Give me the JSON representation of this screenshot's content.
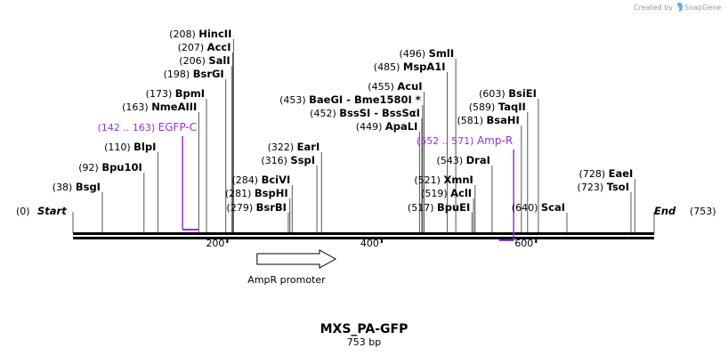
{
  "credit": "Created by",
  "credit_brand": "SnapGene",
  "title": "MXS_PA-GFP",
  "length_label": "753 bp",
  "total_bp": 753,
  "start_label": "Start",
  "start_pos": "(0)",
  "end_label": "End",
  "end_pos": "(753)",
  "ticks": [
    {
      "bp": 200,
      "label": "200"
    },
    {
      "bp": 400,
      "label": "400"
    },
    {
      "bp": 600,
      "label": "600"
    }
  ],
  "colors": {
    "feature": "#9b30d9",
    "backbone": "#000000",
    "lead": "#555555",
    "credit_icon": "#5ab4e6"
  },
  "sites": [
    {
      "bp": 38,
      "pos": "(38)",
      "name": "BsgI"
    },
    {
      "bp": 92,
      "pos": "(92)",
      "name": "Bpu10I"
    },
    {
      "bp": 110,
      "pos": "(110)",
      "name": "BlpI"
    },
    {
      "bp": 163,
      "pos": "(163)",
      "name": "NmeAIII"
    },
    {
      "bp": 173,
      "pos": "(173)",
      "name": "BpmI"
    },
    {
      "bp": 198,
      "pos": "(198)",
      "name": "BsrGI"
    },
    {
      "bp": 206,
      "pos": "(206)",
      "name": "SalI"
    },
    {
      "bp": 207,
      "pos": "(207)",
      "name": "AccI"
    },
    {
      "bp": 208,
      "pos": "(208)",
      "name": "HincII"
    },
    {
      "bp": 279,
      "pos": "(279)",
      "name": "BsrBI"
    },
    {
      "bp": 281,
      "pos": "(281)",
      "name": "BspHI"
    },
    {
      "bp": 284,
      "pos": "(284)",
      "name": "BciVI"
    },
    {
      "bp": 316,
      "pos": "(316)",
      "name": "SspI"
    },
    {
      "bp": 322,
      "pos": "(322)",
      "name": "EarI"
    },
    {
      "bp": 449,
      "pos": "(449)",
      "name": "ApaLI"
    },
    {
      "bp": 452,
      "pos": "(452)",
      "name": "BssSI  - BssSαI"
    },
    {
      "bp": 453,
      "pos": "(453)",
      "name": "BaeGI  - Bme1580I *"
    },
    {
      "bp": 455,
      "pos": "(455)",
      "name": "AcuI"
    },
    {
      "bp": 485,
      "pos": "(485)",
      "name": "MspA1I"
    },
    {
      "bp": 496,
      "pos": "(496)",
      "name": "SmlI"
    },
    {
      "bp": 517,
      "pos": "(517)",
      "name": "BpuEI"
    },
    {
      "bp": 519,
      "pos": "(519)",
      "name": "AclI"
    },
    {
      "bp": 521,
      "pos": "(521)",
      "name": "XmnI"
    },
    {
      "bp": 543,
      "pos": "(543)",
      "name": "DraI"
    },
    {
      "bp": 581,
      "pos": "(581)",
      "name": "BsaHI"
    },
    {
      "bp": 589,
      "pos": "(589)",
      "name": "TaqII"
    },
    {
      "bp": 603,
      "pos": "(603)",
      "name": "BsiEI"
    },
    {
      "bp": 640,
      "pos": "(640)",
      "name": "ScaI"
    },
    {
      "bp": 723,
      "pos": "(723)",
      "name": "TsoI"
    },
    {
      "bp": 728,
      "pos": "(728)",
      "name": "EaeI"
    }
  ],
  "features": [
    {
      "start": 142,
      "end": 163,
      "range": "(142 .. 163)",
      "name": "EGFP-C"
    },
    {
      "start": 552,
      "end": 571,
      "range": "(552 .. 571)",
      "name": "Amp-R"
    }
  ],
  "promoter": {
    "start": 227,
    "end": 331,
    "name": "AmpR promoter",
    "direction": "forward"
  }
}
